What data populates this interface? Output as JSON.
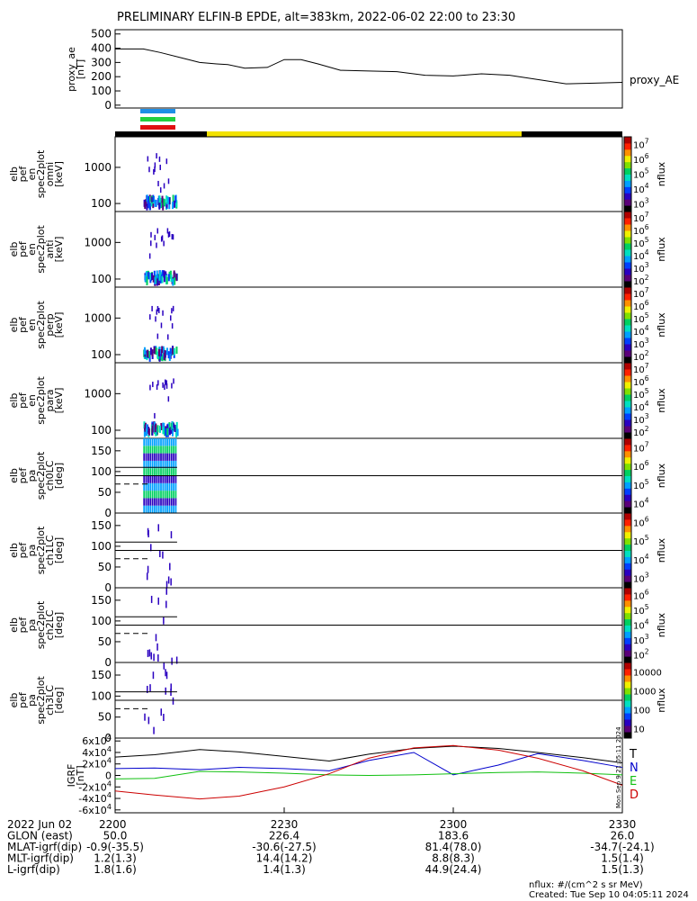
{
  "title": "PRELIMINARY ELFIN-B EPDE, alt=383km, 2022-06-02 22:00 to 23:30",
  "colors": {
    "ae_line": "#000000",
    "sat_black": "#000000",
    "sat_yellow": "#f2e200",
    "bar_blue": "#1f8fe6",
    "bar_green": "#22d040",
    "bar_red": "#e01010",
    "igrf_T": "#000000",
    "igrf_N": "#0000cc",
    "igrf_E": "#10c010",
    "igrf_D": "#cc0000"
  },
  "chart_data": [
    {
      "type": "line",
      "name": "proxy_ae",
      "ylabel": "proxy_ae\n[nT]",
      "legend": "proxy_AE",
      "ylim": [
        -20,
        530
      ],
      "yticks": [
        "0",
        "100",
        "200",
        "300",
        "400",
        "500"
      ],
      "series": [
        {
          "name": "proxy_AE",
          "x": [
            0,
            5,
            8,
            12,
            15,
            18,
            20,
            23,
            27,
            30,
            33,
            36,
            40,
            45,
            50,
            55,
            60,
            65,
            70,
            75,
            80,
            85,
            90
          ],
          "values": [
            395,
            395,
            370,
            330,
            300,
            290,
            285,
            260,
            265,
            320,
            320,
            290,
            245,
            240,
            235,
            210,
            205,
            220,
            210,
            180,
            150,
            155,
            160
          ]
        }
      ]
    },
    {
      "type": "heatmap",
      "name": "elb_pef_en_spec2plot_omni",
      "ylabel": "elb\npef\nen\nspec2plot\nomni\n[keV]",
      "yscale": "log",
      "ylim": [
        60,
        7000
      ],
      "yticks": [
        "100",
        "1000"
      ],
      "zlabel": "nflux",
      "zticks": [
        "10^3",
        "10^4",
        "10^5",
        "10^6",
        "10^7"
      ]
    },
    {
      "type": "heatmap",
      "name": "elb_pef_en_spec2plot_anti",
      "ylabel": "elb\npef\nen\nspec2plot\nanti\n[keV]",
      "yscale": "log",
      "ylim": [
        60,
        7000
      ],
      "yticks": [
        "100",
        "1000"
      ],
      "zlabel": "nflux",
      "zticks": [
        "10^2",
        "10^3",
        "10^4",
        "10^5",
        "10^6",
        "10^7"
      ]
    },
    {
      "type": "heatmap",
      "name": "elb_pef_en_spec2plot_perp",
      "ylabel": "elb\npef\nen\nspec2plot\nperp\n[keV]",
      "yscale": "log",
      "ylim": [
        60,
        7000
      ],
      "yticks": [
        "100",
        "1000"
      ],
      "zlabel": "nflux",
      "zticks": [
        "10^2",
        "10^3",
        "10^4",
        "10^5",
        "10^6",
        "10^7"
      ]
    },
    {
      "type": "heatmap",
      "name": "elb_pef_en_spec2plot_para",
      "ylabel": "elb\npef\nen\nspec2plot\npara\n[keV]",
      "yscale": "log",
      "ylim": [
        60,
        7000
      ],
      "yticks": [
        "100",
        "1000"
      ],
      "zlabel": "nflux",
      "zticks": [
        "10^2",
        "10^3",
        "10^4",
        "10^5",
        "10^6",
        "10^7"
      ]
    },
    {
      "type": "heatmap",
      "name": "elb_pef_pa_spec2plot_ch0LC",
      "ylabel": "elb\npef\npa\nspec2plot\nch0LC\n[deg]",
      "ylim": [
        0,
        180
      ],
      "yticks": [
        "0",
        "50",
        "100",
        "150"
      ],
      "zlabel": "nflux",
      "zticks": [
        "10^4",
        "10^5",
        "10^6",
        "10^7"
      ]
    },
    {
      "type": "heatmap",
      "name": "elb_pef_pa_spec2plot_ch1LC",
      "ylabel": "elb\npef\npa\nspec2plot\nch1LC\n[deg]",
      "ylim": [
        0,
        180
      ],
      "yticks": [
        "0",
        "50",
        "100",
        "150"
      ],
      "zlabel": "nflux",
      "zticks": [
        "10^3",
        "10^4",
        "10^5",
        "10^6"
      ]
    },
    {
      "type": "heatmap",
      "name": "elb_pef_pa_spec2plot_ch2LC",
      "ylabel": "elb\npef\npa\nspec2plot\nch2LC\n[deg]",
      "ylim": [
        0,
        180
      ],
      "yticks": [
        "0",
        "50",
        "100",
        "150"
      ],
      "zlabel": "nflux",
      "zticks": [
        "10^2",
        "10^3",
        "10^4",
        "10^5",
        "10^6"
      ]
    },
    {
      "type": "heatmap",
      "name": "elb_pef_pa_spec2plot_ch3LC",
      "ylabel": "elb\npef\npa\nspec2plot\nch3LC\n[deg]",
      "ylim": [
        0,
        180
      ],
      "yticks": [
        "0",
        "50",
        "100",
        "150"
      ],
      "zlabel": "nflux",
      "zticks": [
        "10",
        "100",
        "1000",
        "10000"
      ]
    },
    {
      "type": "line",
      "name": "IGRF",
      "ylabel": "IGRF\n[nT]",
      "ylim": [
        -65000,
        65000
      ],
      "yticks": [
        "-6x10^4",
        "-4x10^4",
        "-2x10^4",
        "0",
        "2x10^4",
        "4x10^4",
        "6x10^4"
      ],
      "legend": [
        "T",
        "N",
        "E",
        "D"
      ],
      "series": [
        {
          "name": "T",
          "x": [
            0,
            7,
            15,
            22,
            30,
            38,
            45,
            53,
            60,
            68,
            75,
            83,
            90
          ],
          "values": [
            32000,
            36000,
            45000,
            41000,
            33000,
            25000,
            37000,
            47000,
            51000,
            47000,
            40000,
            31000,
            22000
          ]
        },
        {
          "name": "N",
          "x": [
            0,
            7,
            15,
            22,
            30,
            38,
            45,
            53,
            60,
            68,
            75,
            83,
            90
          ],
          "values": [
            12000,
            13000,
            10000,
            14000,
            12000,
            8000,
            26000,
            40000,
            1000,
            18000,
            38000,
            26000,
            14000
          ]
        },
        {
          "name": "E",
          "x": [
            0,
            7,
            15,
            22,
            30,
            38,
            45,
            53,
            60,
            68,
            75,
            83,
            90
          ],
          "values": [
            -6000,
            -5000,
            7000,
            6000,
            4000,
            1000,
            0,
            1000,
            3000,
            5000,
            6000,
            4000,
            1000
          ]
        },
        {
          "name": "D",
          "x": [
            0,
            7,
            15,
            22,
            30,
            38,
            45,
            53,
            60,
            68,
            75,
            83,
            90
          ],
          "values": [
            -27000,
            -34000,
            -41000,
            -36000,
            -20000,
            3000,
            30000,
            48000,
            52000,
            44000,
            30000,
            8000,
            -17000
          ]
        }
      ]
    }
  ],
  "x_axis": {
    "ticks": [
      "2200",
      "2230",
      "2300",
      "2330"
    ],
    "rows": [
      {
        "label": "2022 Jun 02",
        "values": [
          "2200",
          "",
          "",
          ""
        ]
      },
      {
        "label": "GLON (east)",
        "values": [
          "50.0",
          "226.4",
          "183.6",
          "26.0"
        ]
      },
      {
        "label": "MLAT-igrf(dip)",
        "values": [
          "-0.9(-35.5)",
          "-30.6(-27.5)",
          "81.4(78.0)",
          "-34.7(-24.1)"
        ]
      },
      {
        "label": "MLT-igrf(dip)",
        "values": [
          "1.2(1.3)",
          "14.4(14.2)",
          "8.8(8.3)",
          "1.5(1.4)"
        ]
      },
      {
        "label": "L-igrf(dip)",
        "values": [
          "1.8(1.6)",
          "1.4(1.3)",
          "44.9(24.4)",
          "1.5(1.3)"
        ]
      }
    ]
  },
  "footer": {
    "units_note": "nflux: #/(cm^2 s sr MeV)",
    "created": "Created: Tue Sep 10 04:05:11 2024"
  },
  "side_stamp": "Mon Sep 9 21:05:11 2024"
}
